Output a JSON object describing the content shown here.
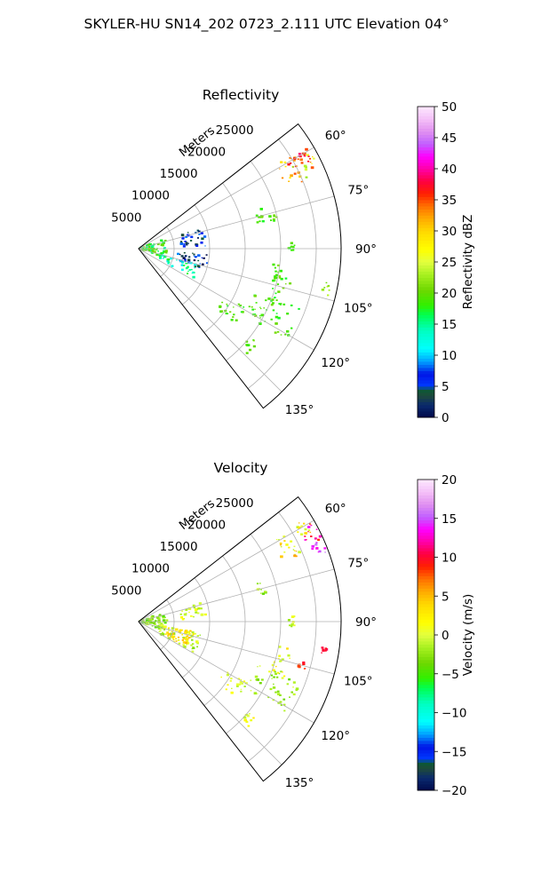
{
  "figure": {
    "title": "SKYLER-HU  SN14_202  0723_2.111 UTC Elevation 04°"
  },
  "chart_data": [
    {
      "type": "polar",
      "title": "Reflectivity",
      "radial_label": "Meters",
      "radial_ticks": [
        5000,
        10000,
        15000,
        20000,
        25000
      ],
      "radial_tick_labels": [
        "5000",
        "10000",
        "15000",
        "20000",
        "25000"
      ],
      "rmax": 28500,
      "theta_range": [
        52,
        142
      ],
      "angle_ticks": [
        60,
        75,
        90,
        105,
        120,
        135
      ],
      "angle_tick_labels": [
        "60°",
        "75°",
        "90°",
        "105°",
        "120°",
        "135°"
      ],
      "colorbar": {
        "label": "Reflectivity dBZ",
        "range": [
          0,
          50
        ],
        "ticks": [
          0,
          5,
          10,
          15,
          20,
          25,
          30,
          35,
          40,
          45,
          50
        ],
        "tick_labels": [
          "0",
          "5",
          "10",
          "15",
          "20",
          "25",
          "30",
          "35",
          "40",
          "45",
          "50"
        ]
      },
      "echoes": [
        {
          "az_from": 58,
          "az_to": 68,
          "r_from": 22000,
          "r_to": 28000,
          "value": 30,
          "spread": 8
        },
        {
          "az_from": 59,
          "az_to": 64,
          "r_from": 24500,
          "r_to": 27800,
          "value": 36,
          "spread": 3
        },
        {
          "az_from": 70,
          "az_to": 110,
          "r_from": 200,
          "r_to": 4000,
          "value": 18,
          "spread": 4
        },
        {
          "az_from": 72,
          "az_to": 88,
          "r_from": 6000,
          "r_to": 9500,
          "value": 5,
          "spread": 4
        },
        {
          "az_from": 95,
          "az_to": 108,
          "r_from": 5500,
          "r_to": 10000,
          "value": 4,
          "spread": 5
        },
        {
          "az_from": 105,
          "az_to": 118,
          "r_from": 3000,
          "r_to": 9000,
          "value": 14,
          "spread": 4
        },
        {
          "az_from": 72,
          "az_to": 78,
          "r_from": 17000,
          "r_to": 18500,
          "value": 19,
          "spread": 2
        },
        {
          "az_from": 76,
          "az_to": 79,
          "r_from": 19000,
          "r_to": 20000,
          "value": 20,
          "spread": 2
        },
        {
          "az_from": 88,
          "az_to": 92,
          "r_from": 21000,
          "r_to": 22000,
          "value": 18,
          "spread": 2
        },
        {
          "az_from": 96,
          "az_to": 104,
          "r_from": 19000,
          "r_to": 20500,
          "value": 20,
          "spread": 2
        },
        {
          "az_from": 100,
          "az_to": 104,
          "r_from": 26500,
          "r_to": 27500,
          "value": 22,
          "spread": 2
        },
        {
          "az_from": 100,
          "az_to": 112,
          "r_from": 19500,
          "r_to": 22000,
          "value": 19,
          "spread": 2
        },
        {
          "az_from": 110,
          "az_to": 122,
          "r_from": 17500,
          "r_to": 24500,
          "value": 19,
          "spread": 2
        },
        {
          "az_from": 118,
          "az_to": 128,
          "r_from": 14000,
          "r_to": 17500,
          "value": 19,
          "spread": 2
        },
        {
          "az_from": 128,
          "az_to": 134,
          "r_from": 20000,
          "r_to": 21500,
          "value": 19,
          "spread": 2
        }
      ]
    },
    {
      "type": "polar",
      "title": "Velocity",
      "radial_label": "Meters",
      "radial_ticks": [
        5000,
        10000,
        15000,
        20000,
        25000
      ],
      "radial_tick_labels": [
        "5000",
        "10000",
        "15000",
        "20000",
        "25000"
      ],
      "rmax": 28500,
      "theta_range": [
        52,
        142
      ],
      "angle_ticks": [
        60,
        75,
        90,
        105,
        120,
        135
      ],
      "angle_tick_labels": [
        "60°",
        "75°",
        "90°",
        "105°",
        "120°",
        "135°"
      ],
      "colorbar": {
        "label": "Velocity (m/s)",
        "range": [
          -20,
          20
        ],
        "ticks": [
          -20,
          -15,
          -10,
          -5,
          0,
          5,
          10,
          15,
          20
        ],
        "tick_labels": [
          "−20",
          "−15",
          "−10",
          "−5",
          "0",
          "5",
          "10",
          "15",
          "20"
        ]
      },
      "echoes": [
        {
          "az_from": 58,
          "az_to": 68,
          "r_from": 22000,
          "r_to": 28000,
          "value": 2,
          "spread": 4
        },
        {
          "az_from": 60,
          "az_to": 66,
          "r_from": 26000,
          "r_to": 28300,
          "value": 11,
          "spread": 3
        },
        {
          "az_from": 66,
          "az_to": 70,
          "r_from": 26500,
          "r_to": 28300,
          "value": 15,
          "spread": 2
        },
        {
          "az_from": 70,
          "az_to": 110,
          "r_from": 200,
          "r_to": 4000,
          "value": -3,
          "spread": 2
        },
        {
          "az_from": 72,
          "az_to": 88,
          "r_from": 6000,
          "r_to": 9500,
          "value": 0,
          "spread": 2
        },
        {
          "az_from": 100,
          "az_to": 120,
          "r_from": 3000,
          "r_to": 9000,
          "value": -1,
          "spread": 2
        },
        {
          "az_from": 100,
          "az_to": 118,
          "r_from": 4000,
          "r_to": 8000,
          "value": 3,
          "spread": 2
        },
        {
          "az_from": 72,
          "az_to": 78,
          "r_from": 17000,
          "r_to": 18500,
          "value": -2,
          "spread": 2
        },
        {
          "az_from": 88,
          "az_to": 92,
          "r_from": 21000,
          "r_to": 22000,
          "value": -1,
          "spread": 2
        },
        {
          "az_from": 98,
          "az_to": 100,
          "r_from": 26000,
          "r_to": 27000,
          "value": 10,
          "spread": 1
        },
        {
          "az_from": 100,
          "az_to": 112,
          "r_from": 19500,
          "r_to": 22000,
          "value": 1,
          "spread": 3
        },
        {
          "az_from": 104,
          "az_to": 106,
          "r_from": 23000,
          "r_to": 24500,
          "value": 9,
          "spread": 1
        },
        {
          "az_from": 110,
          "az_to": 122,
          "r_from": 17500,
          "r_to": 24500,
          "value": -2,
          "spread": 2
        },
        {
          "az_from": 118,
          "az_to": 128,
          "r_from": 14000,
          "r_to": 17500,
          "value": 0,
          "spread": 2
        },
        {
          "az_from": 128,
          "az_to": 134,
          "r_from": 20000,
          "r_to": 21500,
          "value": 1,
          "spread": 2
        }
      ]
    }
  ]
}
